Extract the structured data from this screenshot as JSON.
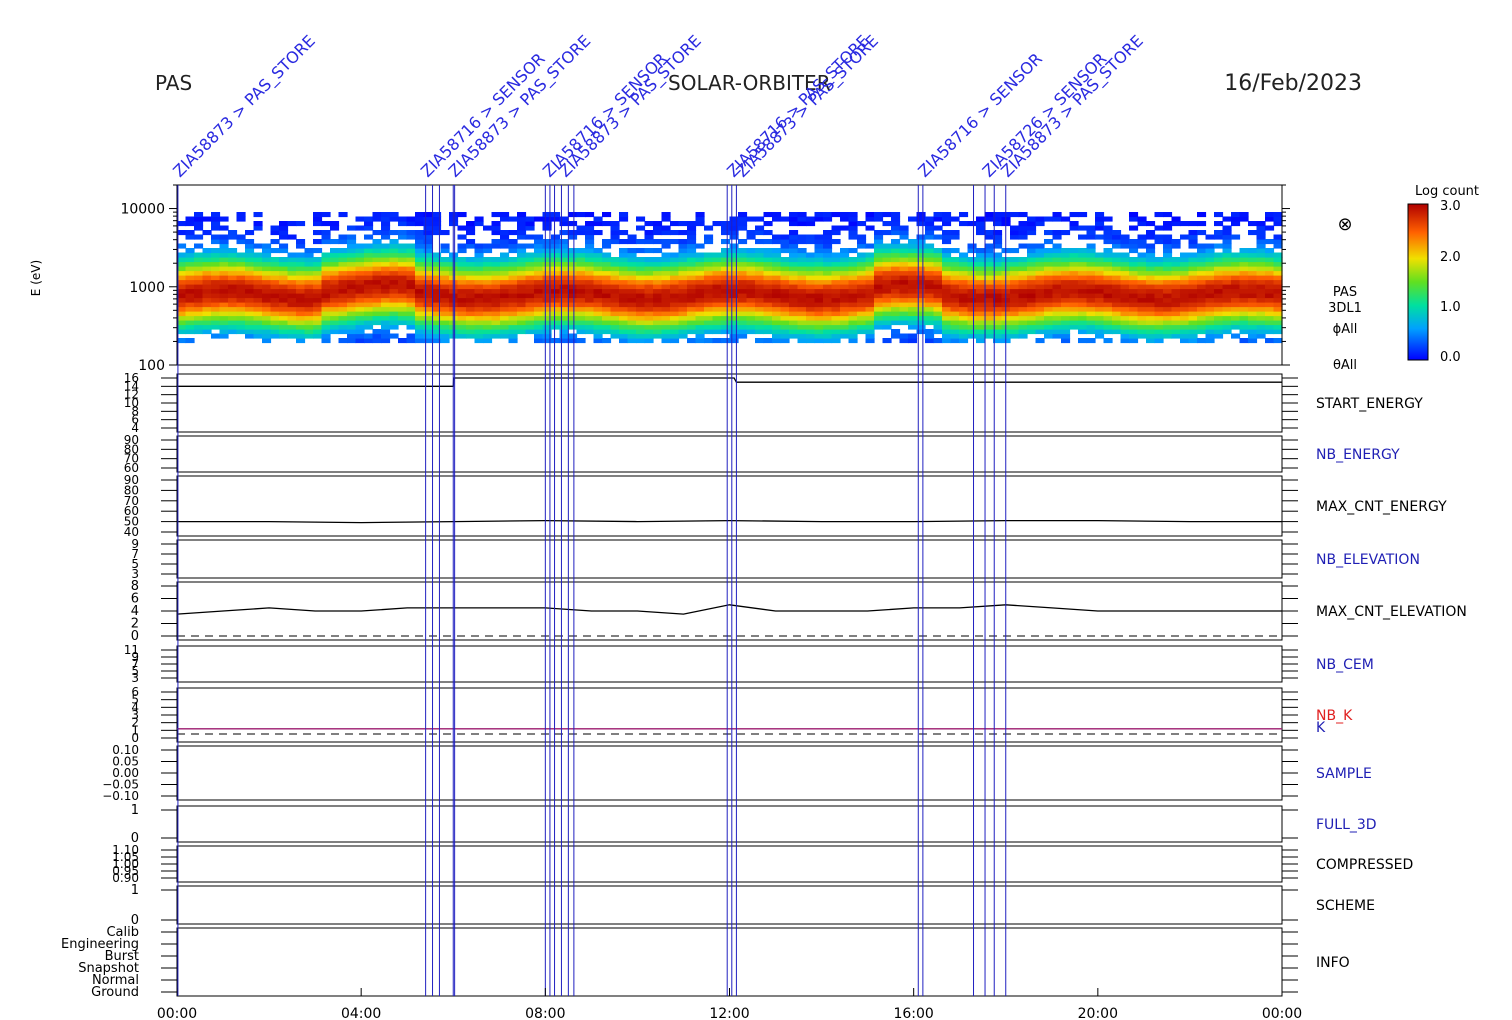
{
  "header": {
    "left": "PAS",
    "center": "SOLAR-ORBITER",
    "date": "16/Feb/2023"
  },
  "colorbar": {
    "title": "Log count",
    "ticks": [
      "3.0",
      "2.0",
      "1.0",
      "0.0"
    ]
  },
  "spectrogram": {
    "ylabel": "E (eV)",
    "yticks": [
      "10000",
      "1000",
      "100"
    ],
    "side_labels": [
      "PAS",
      "3DL1",
      "ϕAll",
      "θAll"
    ],
    "symbol": "⊗"
  },
  "panels": [
    {
      "name": "START_ENERGY",
      "color": "#000000",
      "ticks": [
        "16",
        "14",
        "12",
        "10",
        "8",
        "6",
        "4"
      ]
    },
    {
      "name": "NB_ENERGY",
      "color": "#1f1fb4",
      "ticks": [
        "90",
        "80",
        "70",
        "60"
      ]
    },
    {
      "name": "MAX_CNT_ENERGY",
      "color": "#000000",
      "ticks": [
        "90",
        "80",
        "70",
        "60",
        "50",
        "40"
      ]
    },
    {
      "name": "NB_ELEVATION",
      "color": "#1f1fb4",
      "ticks": [
        "9",
        "7",
        "5",
        "3"
      ]
    },
    {
      "name": "MAX_CNT_ELEVATION",
      "color": "#000000",
      "ticks": [
        "8",
        "6",
        "4",
        "2",
        "0"
      ]
    },
    {
      "name": "NB_CEM",
      "color": "#1f1fb4",
      "ticks": [
        "11",
        "9",
        "7",
        "5",
        "3"
      ]
    },
    {
      "name": "NB_K",
      "color": "#e02020",
      "ticks": [
        "6",
        "5",
        "4",
        "3",
        "2",
        "1",
        "0"
      ]
    },
    {
      "name": "K",
      "color": "#1f1fb4",
      "ticks": []
    },
    {
      "name": "SAMPLE",
      "color": "#1f1fb4",
      "ticks": [
        "0.10",
        "0.05",
        "0.00",
        "−0.05",
        "−0.10"
      ]
    },
    {
      "name": "FULL_3D",
      "color": "#1f1fb4",
      "ticks": [
        "1",
        "0"
      ]
    },
    {
      "name": "COMPRESSED",
      "color": "#000000",
      "ticks": [
        "1.10",
        "1.05",
        "1.00",
        "0.95",
        "0.90"
      ]
    },
    {
      "name": "SCHEME",
      "color": "#000000",
      "ticks": [
        "1",
        "0"
      ]
    },
    {
      "name": "INFO",
      "color": "#000000",
      "ticks": [
        "Calib",
        "Engineering",
        "Burst",
        "Snapshot",
        "Normal",
        "Ground"
      ]
    }
  ],
  "xticks": [
    "00:00",
    "04:00",
    "08:00",
    "12:00",
    "16:00",
    "20:00",
    "00:00"
  ],
  "event_labels": [
    {
      "hour": 0.02,
      "text": "ZIA58873 > PAS_STORE"
    },
    {
      "hour": 5.4,
      "text": "ZIA58716 > SENSOR"
    },
    {
      "hour": 6.0,
      "text": "ZIA58873 > PAS_STORE"
    },
    {
      "hour": 8.05,
      "text": "ZIA58716 > SENSOR"
    },
    {
      "hour": 8.4,
      "text": "ZIA58873 > PAS_STORE"
    },
    {
      "hour": 12.05,
      "text": "ZIA58716 > PAS_STORE"
    },
    {
      "hour": 12.25,
      "text": "ZIA58873 > PAS_STORE"
    },
    {
      "hour": 16.2,
      "text": "ZIA58716 > SENSOR"
    },
    {
      "hour": 17.6,
      "text": "ZIA58726 > SENSOR"
    },
    {
      "hour": 18.0,
      "text": "ZIA58873 > PAS_STORE"
    }
  ],
  "chart_data": {
    "type": "heatmap",
    "x_range_hours": [
      0,
      24
    ],
    "y_range_eV": [
      100,
      20000
    ],
    "y_scale": "log",
    "colorbar_range": [
      0,
      3
    ],
    "colorbar_title": "Log count",
    "peak_energy_eV": 800,
    "event_marker_hours": [
      0.02,
      5.4,
      5.55,
      5.7,
      6.0,
      6.03,
      8.0,
      8.1,
      8.2,
      8.35,
      8.5,
      8.62,
      11.95,
      12.05,
      12.15,
      16.1,
      16.2,
      17.3,
      17.55,
      17.75,
      18.0
    ],
    "series": [
      {
        "name": "START_ENERGY",
        "x": [
          0,
          6,
          6.01,
          12.1,
          12.15,
          18,
          18.01,
          24
        ],
        "y": [
          14,
          14,
          16,
          16,
          15,
          15,
          15,
          15
        ]
      },
      {
        "name": "MAX_CNT_ENERGY",
        "x": [
          0,
          2,
          4,
          6,
          8,
          10,
          12,
          14,
          16,
          18,
          20,
          22,
          24
        ],
        "y": [
          50,
          50,
          49,
          50,
          51,
          50,
          51,
          50,
          50,
          51,
          51,
          50,
          50
        ]
      },
      {
        "name": "MAX_CNT_ELEVATION",
        "x": [
          0,
          1,
          2,
          3,
          4,
          5,
          6,
          7,
          8,
          9,
          10,
          11,
          12,
          13,
          14,
          15,
          16,
          17,
          18,
          19,
          20,
          21,
          22,
          23,
          24
        ],
        "y": [
          3.5,
          4,
          4.5,
          4,
          4,
          4.5,
          4.5,
          4.5,
          4.5,
          4,
          4,
          3.5,
          5,
          4,
          4,
          4,
          4.5,
          4.5,
          5,
          4.5,
          4,
          4,
          4,
          4,
          4
        ]
      },
      {
        "name": "K",
        "x": [
          0,
          24
        ],
        "y": [
          1.2,
          1.2
        ]
      }
    ]
  }
}
